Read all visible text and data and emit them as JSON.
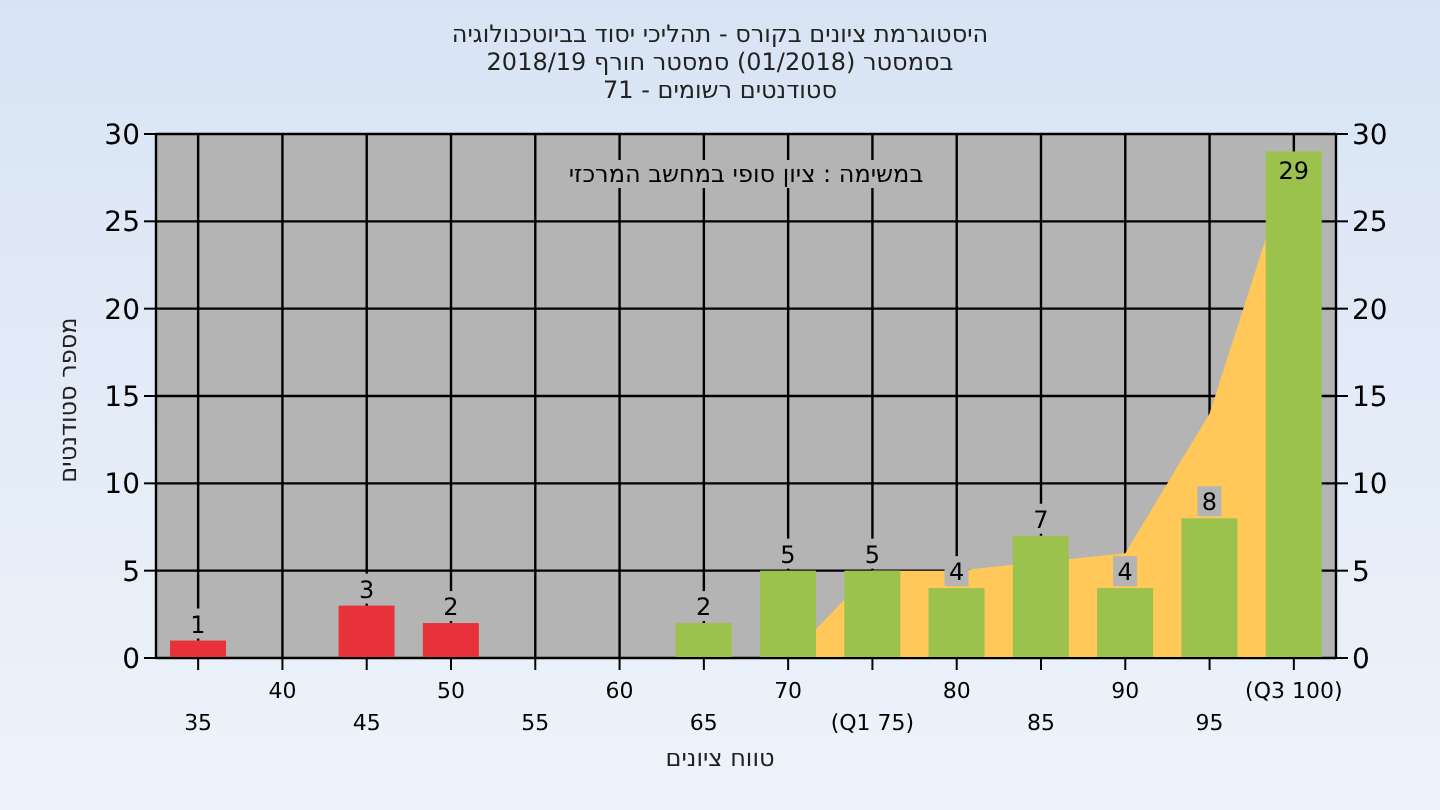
{
  "chart_data": {
    "type": "bar",
    "title": "היסטוגרמת ציונים בקורס - תהליכי יסוד בביוטכנולוגיה",
    "subtitle": "בסמסטר  (01/2018)  סמסטר חורף 2018/19\nסטודנטים רשומים - 71",
    "xlabel": "טווח ציונים",
    "ylabel": "מספר סטודנטים",
    "annotations": [
      "במשימה : ציון סופי במחשב המרכזי"
    ],
    "categories": [
      "35",
      "40",
      "45",
      "50",
      "55",
      "60",
      "65",
      "70",
      "(Q1 75)",
      "80",
      "85",
      "90",
      "95",
      "(Q3 100)"
    ],
    "series": [
      {
        "type": "area",
        "color": "#ffc859",
        "values": [
          null,
          null,
          null,
          null,
          null,
          null,
          null,
          0,
          5,
          5,
          null,
          6,
          14,
          29
        ]
      },
      {
        "colors": [
          "#e8323a",
          "#e8323a",
          "#e8323a",
          "#e8323a",
          "#e8323a",
          "#e8323a",
          "#9cc24e",
          "#9cc24e",
          "#9cc24e",
          "#9cc24e",
          "#9cc24e",
          "#9cc24e",
          "#9cc24e",
          "#9cc24e"
        ],
        "values": [
          1,
          0,
          3,
          2,
          0,
          0,
          2,
          5,
          5,
          4,
          7,
          4,
          8,
          29
        ],
        "value_labels": [
          "1",
          null,
          "3",
          "2",
          null,
          null,
          "2",
          "5",
          "5",
          "4",
          "7",
          "4",
          "8",
          "29"
        ]
      }
    ],
    "ylim": [
      0,
      30
    ],
    "yticks": [
      0,
      5,
      10,
      15,
      20,
      25,
      30
    ],
    "y2lim": [
      0,
      30
    ],
    "y2ticks": [
      0,
      5,
      10,
      15,
      20,
      25,
      30
    ],
    "grid": true,
    "legend": false
  }
}
